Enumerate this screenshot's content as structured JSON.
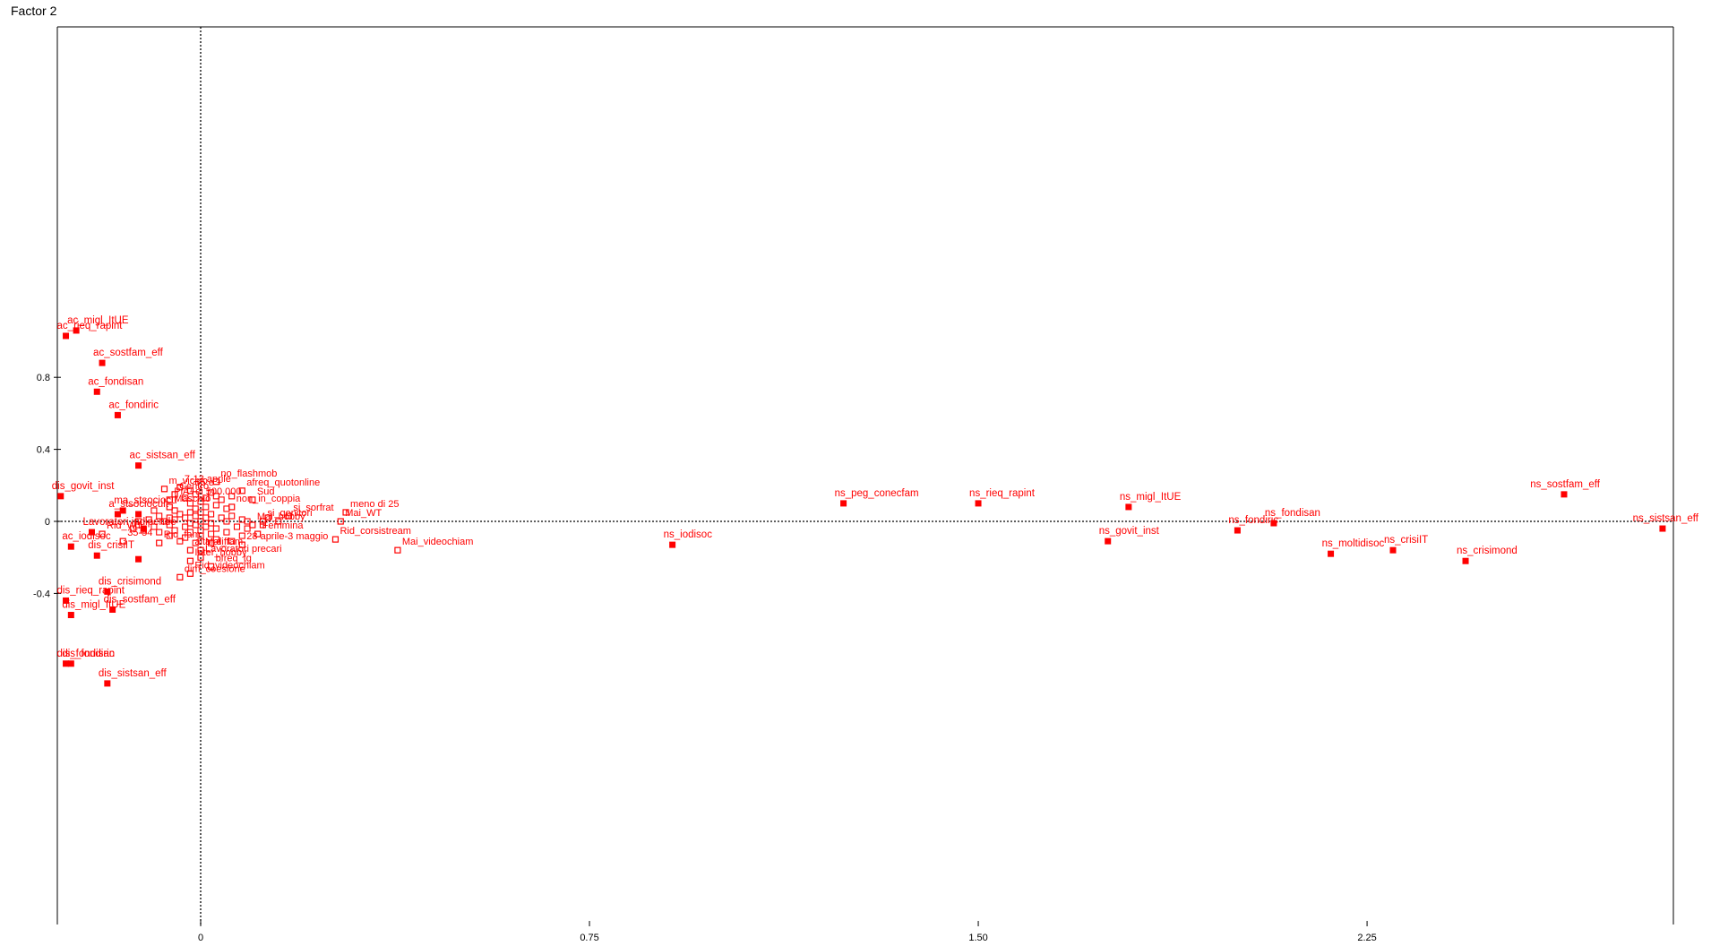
{
  "chart_data": {
    "type": "scatter",
    "ylabel": "Factor 2",
    "xlabel": "",
    "x_ticks": [
      0,
      0.75,
      1.5,
      2.25
    ],
    "x_tick_labels": [
      "0",
      "0.75",
      "1.50",
      "2.25"
    ],
    "y_ticks": [
      0.8,
      0.4,
      0,
      -0.4
    ],
    "y_tick_labels": [
      "0.8",
      "0.4",
      "0",
      "-0.4"
    ],
    "xlim": [
      -0.3,
      2.85
    ],
    "ylim": [
      -0.9,
      1.1
    ],
    "grid": false,
    "zero_lines": "dotted",
    "color": "#ff0000",
    "active_points": [
      {
        "label": "ac_migl_ItUE",
        "x": -0.24,
        "y": 1.06
      },
      {
        "label": "ac_rieq_rapint",
        "x": -0.26,
        "y": 1.03
      },
      {
        "label": "ac_sostfam_eff",
        "x": -0.19,
        "y": 0.88
      },
      {
        "label": "ac_fondisan",
        "x": -0.2,
        "y": 0.72
      },
      {
        "label": "ac_fondiric",
        "x": -0.16,
        "y": 0.59
      },
      {
        "label": "ac_sistsan_eff",
        "x": -0.12,
        "y": 0.31
      },
      {
        "label": "dis_govit_inst",
        "x": -0.27,
        "y": 0.14
      },
      {
        "label": "ma_stsociocu",
        "x": -0.15,
        "y": 0.06
      },
      {
        "label": "a_stsociocult",
        "x": -0.16,
        "y": 0.04
      },
      {
        "label": "Lavoratori indipende",
        "x": -0.21,
        "y": -0.06
      },
      {
        "label": "ac_iodisoc",
        "x": -0.25,
        "y": -0.14
      },
      {
        "label": "dis_crisiIT",
        "x": -0.2,
        "y": -0.19
      },
      {
        "label": "dis_crisimond",
        "x": -0.18,
        "y": -0.39
      },
      {
        "label": "dis_rieq_rapint",
        "x": -0.26,
        "y": -0.44
      },
      {
        "label": "dis_sostfam_eff",
        "x": -0.17,
        "y": -0.49
      },
      {
        "label": "dis_migl_ItUE",
        "x": -0.25,
        "y": -0.52
      },
      {
        "label": "dis_fondiric",
        "x": -0.25,
        "y": -0.79
      },
      {
        "label": "dis_fondisan",
        "x": -0.26,
        "y": -0.79
      },
      {
        "label": "dis_sistsan_eff",
        "x": -0.18,
        "y": -0.9
      },
      {
        "label": "",
        "x": -0.12,
        "y": -0.21
      },
      {
        "label": "",
        "x": -0.11,
        "y": -0.04
      },
      {
        "label": "",
        "x": -0.12,
        "y": 0.04
      },
      {
        "label": "ns_peg_conecfam",
        "x": 1.24,
        "y": 0.1
      },
      {
        "label": "ns_rieq_rapint",
        "x": 1.5,
        "y": 0.1
      },
      {
        "label": "ns_migl_ItUE",
        "x": 1.79,
        "y": 0.08
      },
      {
        "label": "ns_sostfam_eff",
        "x": 2.63,
        "y": 0.15
      },
      {
        "label": "ns_iodisoc",
        "x": 0.91,
        "y": -0.13
      },
      {
        "label": "ns_govit_inst",
        "x": 1.75,
        "y": -0.11
      },
      {
        "label": "ns_fondiric",
        "x": 2.0,
        "y": -0.05
      },
      {
        "label": "ns_fondisan",
        "x": 2.07,
        "y": -0.01
      },
      {
        "label": "ns_sistsan_eff",
        "x": 2.82,
        "y": -0.04
      },
      {
        "label": "ns_moltidisoc",
        "x": 2.18,
        "y": -0.18
      },
      {
        "label": "ns_crisiIT",
        "x": 2.3,
        "y": -0.16
      },
      {
        "label": "ns_crisimond",
        "x": 2.44,
        "y": -0.22
      }
    ],
    "supplementary_points": [
      {
        "label": "no_flashmob",
        "x": 0.03,
        "y": 0.22
      },
      {
        "label": "7-13 aprile",
        "x": -0.04,
        "y": 0.19
      },
      {
        "label": "65 e +",
        "x": -0.02,
        "y": 0.17
      },
      {
        "label": "m_vicino",
        "x": -0.07,
        "y": 0.18
      },
      {
        "label": "afreq_quotonline",
        "x": 0.08,
        "y": 0.17
      },
      {
        "label": "Centro",
        "x": -0.05,
        "y": 0.15
      },
      {
        "label": "Sud",
        "x": 0.1,
        "y": 0.12
      },
      {
        "label": "PiÃ¹ di 500.000",
        "x": -0.06,
        "y": 0.12
      },
      {
        "label": "non_in_coppia",
        "x": 0.06,
        "y": 0.08
      },
      {
        "label": "Maschio",
        "x": -0.06,
        "y": 0.08
      },
      {
        "label": "meno di 25",
        "x": 0.28,
        "y": 0.05
      },
      {
        "label": "si_sorfrat",
        "x": 0.17,
        "y": 0.03
      },
      {
        "label": "si_genitori",
        "x": 0.12,
        "y": 0
      },
      {
        "label": "Mai_WT",
        "x": 0.27,
        "y": 0
      },
      {
        "label": "Mai_hobby",
        "x": 0.1,
        "y": -0.02
      },
      {
        "label": "Rid_WT",
        "x": -0.19,
        "y": -0.07
      },
      {
        "label": "35-54",
        "x": -0.15,
        "y": -0.11
      },
      {
        "label": "Femmina",
        "x": 0.11,
        "y": -0.07
      },
      {
        "label": "Rid_corsistream",
        "x": 0.26,
        "y": -0.1
      },
      {
        "label": "Rid_fam",
        "x": -0.08,
        "y": -0.12
      },
      {
        "label": "28 aprile-3 maggio",
        "x": 0.08,
        "y": -0.13
      },
      {
        "label": "alta_diff",
        "x": -0.02,
        "y": -0.16
      },
      {
        "label": "Mai_fam",
        "x": 0,
        "y": -0.16
      },
      {
        "label": "Mai_videochiam",
        "x": 0.38,
        "y": -0.16
      },
      {
        "label": "Lavoratori precari",
        "x": 0,
        "y": -0.2
      },
      {
        "label": "Inter_hobby",
        "x": -0.02,
        "y": -0.22
      },
      {
        "label": "bfreq_tg",
        "x": 0.02,
        "y": -0.25
      },
      {
        "label": "Rid_videochiam",
        "x": -0.02,
        "y": -0.29
      },
      {
        "label": "dim_coesione",
        "x": -0.04,
        "y": -0.31
      }
    ]
  }
}
